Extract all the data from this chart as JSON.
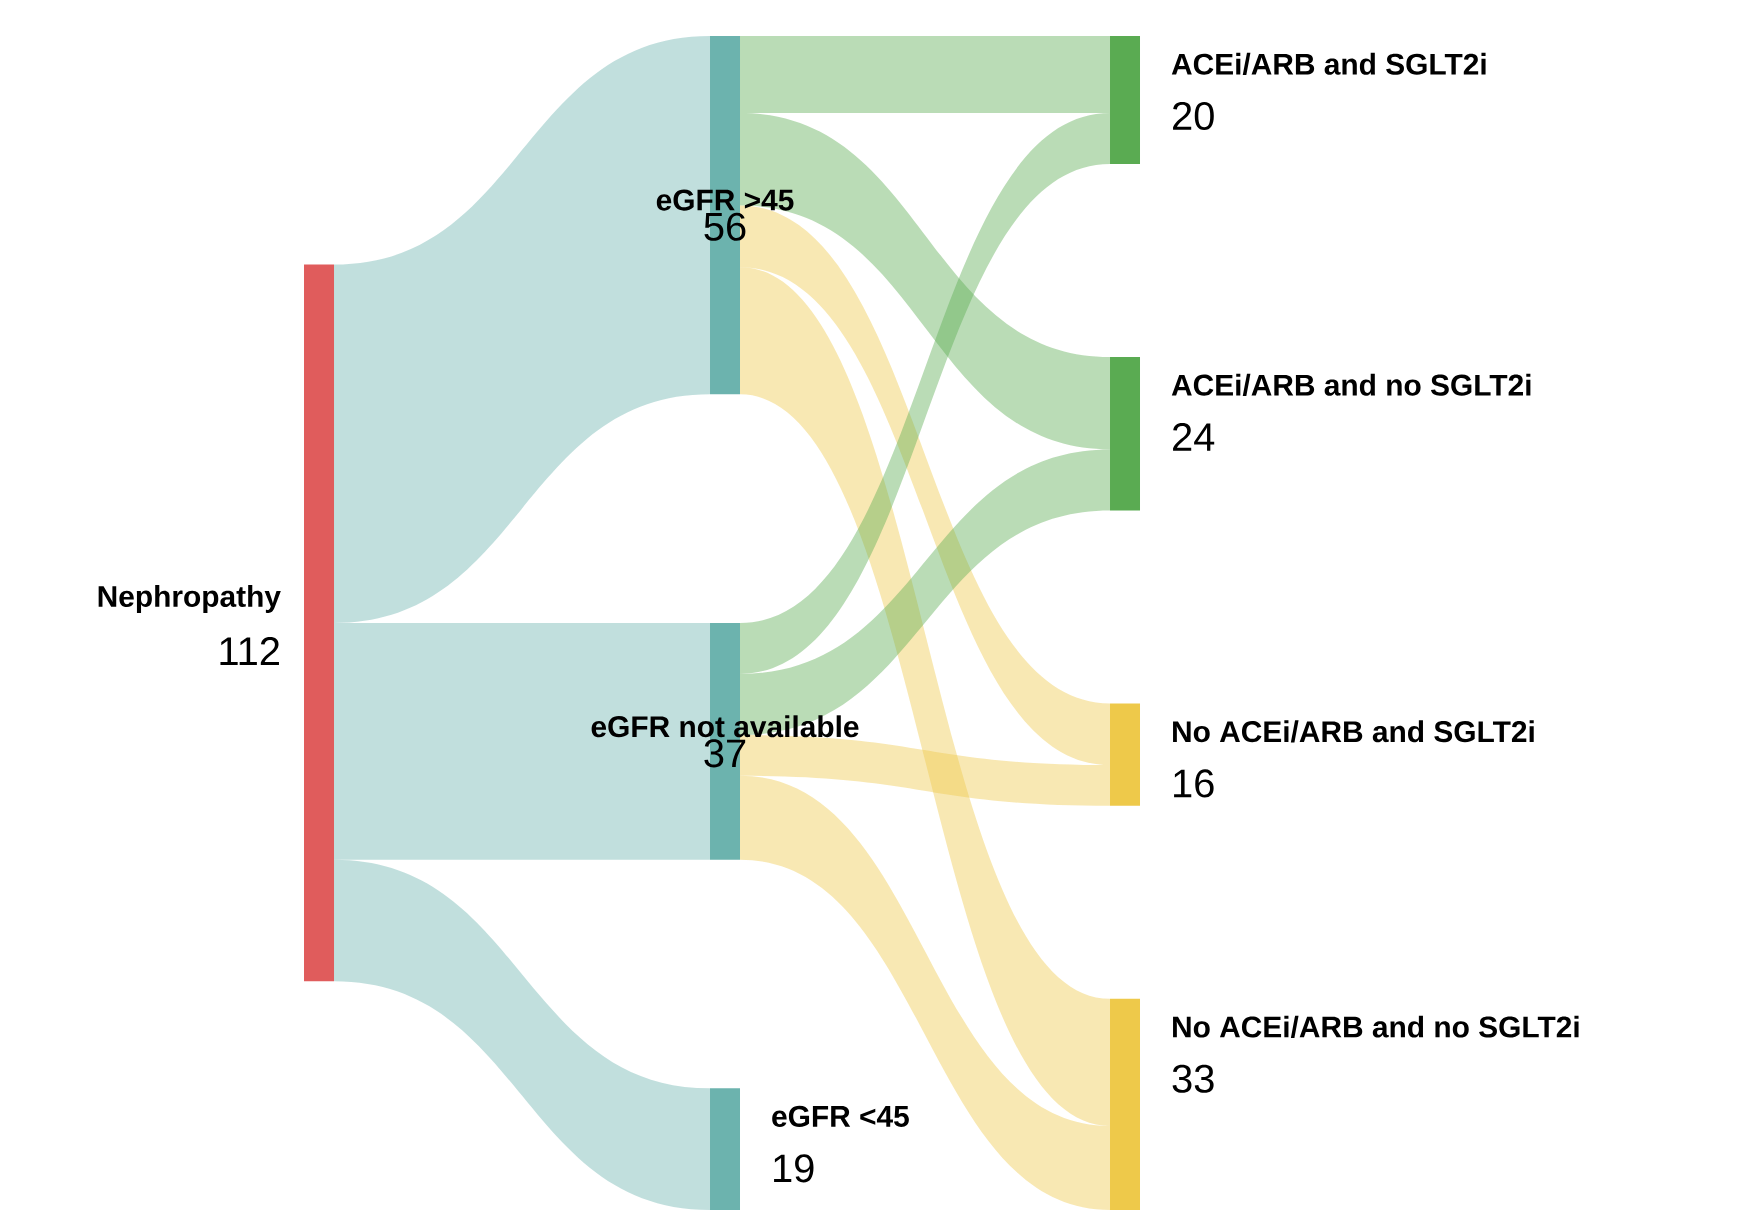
{
  "chart_data": {
    "type": "other",
    "data_labels": true,
    "categories": [
      "Nephropathy",
      "eGFR >45",
      "eGFR not available",
      "eGFR <45",
      "ACEi/ARB and SGLT2i",
      "ACEi/ARB and no SGLT2i",
      "No ACEi/ARB and SGLT2i",
      "No ACEi/ARB and no SGLT2i"
    ],
    "series": [
      {
        "values": [
          112,
          null,
          null,
          null,
          null,
          null,
          null,
          null
        ]
      },
      {
        "values": [
          null,
          56,
          37,
          19,
          null,
          null,
          null,
          null
        ]
      },
      {
        "values": [
          null,
          null,
          null,
          null,
          20,
          24,
          16,
          33
        ]
      }
    ],
    "colors": [
      "#e05c5c",
      "#6cb3ae",
      "#6cb3ae",
      "#6cb3ae",
      "#5aab52",
      "#5aab52",
      "#eec94a",
      "#eec94a"
    ]
  }
}
